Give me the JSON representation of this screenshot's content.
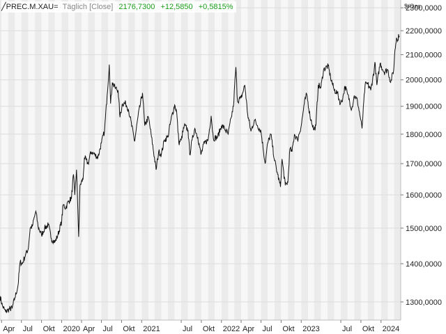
{
  "header": {
    "symbol": "PREC.M.XAU=",
    "mode": "Täglich [Close]",
    "last": "2176,7300",
    "change": "+12,5850",
    "change_pct": "+0,5815%"
  },
  "unit": "$/Ozs",
  "colors": {
    "positive": "#1a9e1a",
    "line": "#111111",
    "band_dark": "#ebebeb",
    "band_light": "#f7f7f7"
  },
  "chart_data": {
    "type": "line",
    "title": "PREC.M.XAU=",
    "ylabel": "$/Ozs",
    "xlabel": "",
    "ylim": [
      1255,
      2335
    ],
    "xlim": [
      "2019-03-25",
      "2024-03-31"
    ],
    "y_ticks": [
      "1300,0000",
      "1400,0000",
      "1500,0000",
      "1600,0000",
      "1700,0000",
      "1800,0000",
      "1900,0000",
      "2000,0000",
      "2100,0000",
      "2200,0000",
      "2300,0000"
    ],
    "y_tick_values": [
      1300,
      1400,
      1500,
      1600,
      1700,
      1800,
      1900,
      2000,
      2100,
      2200,
      2300
    ],
    "x_ticks": [
      {
        "label": "Apr",
        "date": "2019-04-01"
      },
      {
        "label": "Jul",
        "date": "2019-07-01"
      },
      {
        "label": "Okt",
        "date": "2019-10-01"
      },
      {
        "label": "2020",
        "date": "2020-01-01"
      },
      {
        "label": "Apr",
        "date": "2020-04-01"
      },
      {
        "label": "Jul",
        "date": "2020-07-01"
      },
      {
        "label": "Okt",
        "date": "2020-10-01"
      },
      {
        "label": "2021",
        "date": "2021-01-01"
      },
      {
        "label": "Jul",
        "date": "2021-07-01"
      },
      {
        "label": "Okt",
        "date": "2021-10-01"
      },
      {
        "label": "2022",
        "date": "2022-01-01"
      },
      {
        "label": "Apr",
        "date": "2022-04-01"
      },
      {
        "label": "Jul",
        "date": "2022-07-01"
      },
      {
        "label": "Okt",
        "date": "2022-10-01"
      },
      {
        "label": "2023",
        "date": "2023-01-01"
      },
      {
        "label": "Jul",
        "date": "2023-07-01"
      },
      {
        "label": "Okt",
        "date": "2023-10-01"
      },
      {
        "label": "2024",
        "date": "2024-01-01"
      }
    ],
    "grid": true,
    "series": [
      {
        "color": "#111111",
        "points": [
          [
            "2019-03-25",
            1315
          ],
          [
            "2019-04-05",
            1290
          ],
          [
            "2019-04-20",
            1275
          ],
          [
            "2019-05-01",
            1280
          ],
          [
            "2019-05-20",
            1285
          ],
          [
            "2019-06-01",
            1310
          ],
          [
            "2019-06-15",
            1340
          ],
          [
            "2019-06-25",
            1405
          ],
          [
            "2019-07-05",
            1400
          ],
          [
            "2019-07-20",
            1425
          ],
          [
            "2019-08-01",
            1440
          ],
          [
            "2019-08-10",
            1500
          ],
          [
            "2019-08-20",
            1505
          ],
          [
            "2019-09-01",
            1540
          ],
          [
            "2019-09-05",
            1550
          ],
          [
            "2019-09-15",
            1505
          ],
          [
            "2019-10-01",
            1480
          ],
          [
            "2019-10-15",
            1500
          ],
          [
            "2019-11-01",
            1510
          ],
          [
            "2019-11-15",
            1470
          ],
          [
            "2019-12-01",
            1460
          ],
          [
            "2019-12-15",
            1480
          ],
          [
            "2020-01-01",
            1520
          ],
          [
            "2020-01-08",
            1570
          ],
          [
            "2020-01-20",
            1560
          ],
          [
            "2020-02-01",
            1580
          ],
          [
            "2020-02-15",
            1590
          ],
          [
            "2020-02-24",
            1665
          ],
          [
            "2020-03-01",
            1600
          ],
          [
            "2020-03-09",
            1680
          ],
          [
            "2020-03-19",
            1475
          ],
          [
            "2020-03-25",
            1630
          ],
          [
            "2020-04-08",
            1650
          ],
          [
            "2020-04-14",
            1720
          ],
          [
            "2020-05-01",
            1700
          ],
          [
            "2020-05-15",
            1740
          ],
          [
            "2020-06-01",
            1730
          ],
          [
            "2020-06-15",
            1720
          ],
          [
            "2020-07-01",
            1770
          ],
          [
            "2020-07-15",
            1810
          ],
          [
            "2020-07-27",
            1940
          ],
          [
            "2020-08-06",
            2060
          ],
          [
            "2020-08-12",
            1910
          ],
          [
            "2020-08-20",
            1990
          ],
          [
            "2020-09-01",
            1970
          ],
          [
            "2020-09-15",
            1960
          ],
          [
            "2020-09-24",
            1860
          ],
          [
            "2020-10-05",
            1910
          ],
          [
            "2020-10-20",
            1910
          ],
          [
            "2020-11-01",
            1890
          ],
          [
            "2020-11-09",
            1860
          ],
          [
            "2020-11-30",
            1775
          ],
          [
            "2020-12-15",
            1860
          ],
          [
            "2021-01-05",
            1950
          ],
          [
            "2021-01-15",
            1830
          ],
          [
            "2021-02-01",
            1860
          ],
          [
            "2021-02-15",
            1790
          ],
          [
            "2021-03-08",
            1680
          ],
          [
            "2021-03-20",
            1740
          ],
          [
            "2021-04-01",
            1730
          ],
          [
            "2021-04-15",
            1780
          ],
          [
            "2021-05-01",
            1790
          ],
          [
            "2021-05-15",
            1850
          ],
          [
            "2021-06-01",
            1905
          ],
          [
            "2021-06-10",
            1880
          ],
          [
            "2021-06-20",
            1770
          ],
          [
            "2021-07-01",
            1780
          ],
          [
            "2021-07-15",
            1830
          ],
          [
            "2021-08-01",
            1815
          ],
          [
            "2021-08-09",
            1730
          ],
          [
            "2021-08-20",
            1780
          ],
          [
            "2021-09-01",
            1820
          ],
          [
            "2021-09-15",
            1790
          ],
          [
            "2021-09-29",
            1730
          ],
          [
            "2021-10-15",
            1770
          ],
          [
            "2021-11-01",
            1780
          ],
          [
            "2021-11-15",
            1865
          ],
          [
            "2021-11-25",
            1785
          ],
          [
            "2021-12-15",
            1790
          ],
          [
            "2022-01-01",
            1830
          ],
          [
            "2022-01-15",
            1820
          ],
          [
            "2022-02-01",
            1800
          ],
          [
            "2022-02-15",
            1860
          ],
          [
            "2022-02-25",
            1900
          ],
          [
            "2022-03-08",
            2050
          ],
          [
            "2022-03-15",
            1920
          ],
          [
            "2022-04-01",
            1930
          ],
          [
            "2022-04-18",
            1980
          ],
          [
            "2022-05-01",
            1870
          ],
          [
            "2022-05-16",
            1810
          ],
          [
            "2022-06-01",
            1850
          ],
          [
            "2022-06-15",
            1830
          ],
          [
            "2022-07-01",
            1810
          ],
          [
            "2022-07-20",
            1700
          ],
          [
            "2022-08-01",
            1770
          ],
          [
            "2022-08-15",
            1800
          ],
          [
            "2022-09-01",
            1710
          ],
          [
            "2022-09-15",
            1665
          ],
          [
            "2022-09-28",
            1625
          ],
          [
            "2022-10-05",
            1715
          ],
          [
            "2022-10-20",
            1630
          ],
          [
            "2022-11-01",
            1640
          ],
          [
            "2022-11-10",
            1750
          ],
          [
            "2022-11-20",
            1740
          ],
          [
            "2022-12-01",
            1800
          ],
          [
            "2022-12-15",
            1780
          ],
          [
            "2023-01-01",
            1830
          ],
          [
            "2023-01-15",
            1910
          ],
          [
            "2023-01-26",
            1945
          ],
          [
            "2023-02-10",
            1865
          ],
          [
            "2023-02-28",
            1815
          ],
          [
            "2023-03-09",
            1830
          ],
          [
            "2023-03-20",
            1980
          ],
          [
            "2023-04-01",
            1970
          ],
          [
            "2023-04-13",
            2040
          ],
          [
            "2023-05-04",
            2055
          ],
          [
            "2023-05-15",
            2010
          ],
          [
            "2023-06-01",
            1960
          ],
          [
            "2023-06-15",
            1950
          ],
          [
            "2023-06-29",
            1910
          ],
          [
            "2023-07-10",
            1930
          ],
          [
            "2023-07-20",
            1975
          ],
          [
            "2023-08-01",
            1945
          ],
          [
            "2023-08-20",
            1890
          ],
          [
            "2023-09-01",
            1940
          ],
          [
            "2023-09-15",
            1920
          ],
          [
            "2023-09-28",
            1860
          ],
          [
            "2023-10-06",
            1820
          ],
          [
            "2023-10-20",
            1980
          ],
          [
            "2023-11-01",
            1985
          ],
          [
            "2023-11-15",
            1960
          ],
          [
            "2023-12-01",
            2040
          ],
          [
            "2023-12-04",
            2070
          ],
          [
            "2023-12-13",
            1980
          ],
          [
            "2023-12-28",
            2065
          ],
          [
            "2024-01-15",
            2030
          ],
          [
            "2024-02-01",
            2040
          ],
          [
            "2024-02-14",
            1990
          ],
          [
            "2024-02-28",
            2040
          ],
          [
            "2024-03-05",
            2120
          ],
          [
            "2024-03-12",
            2170
          ],
          [
            "2024-03-18",
            2160
          ],
          [
            "2024-03-21",
            2185
          ],
          [
            "2024-03-25",
            2176.73
          ]
        ]
      }
    ]
  }
}
